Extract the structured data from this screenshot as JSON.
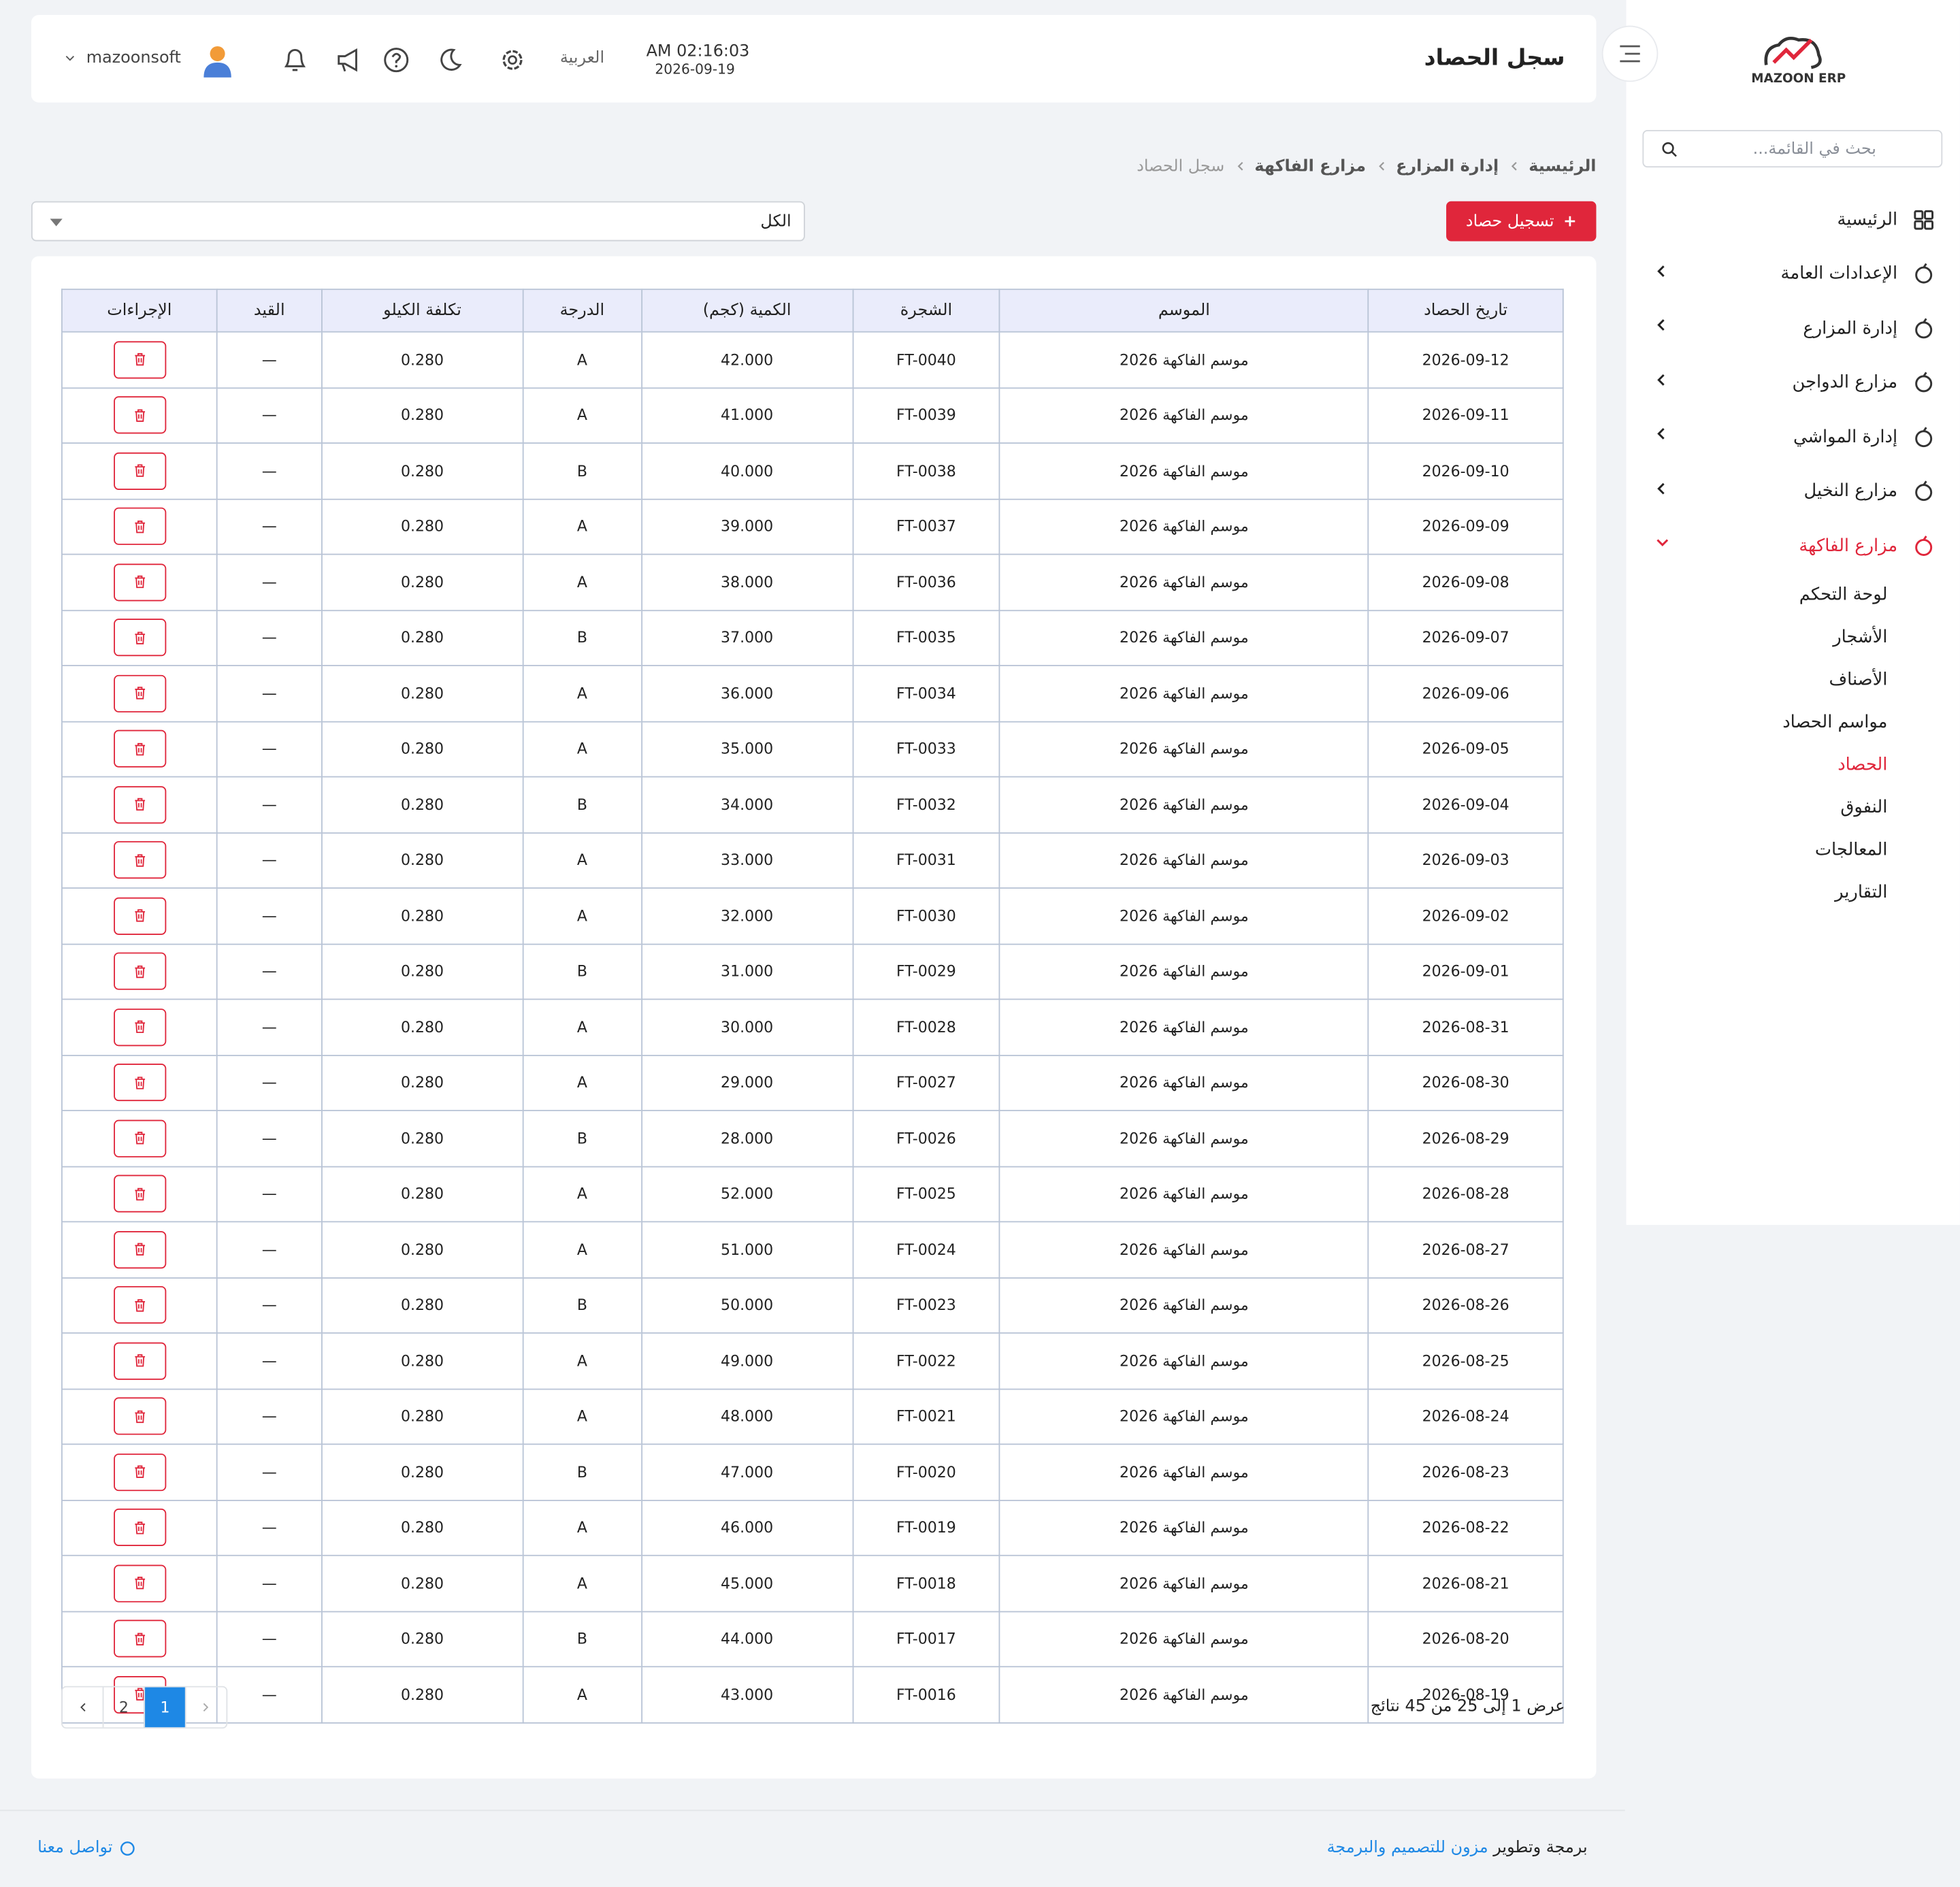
{
  "sidebar": {
    "logo": "MAZOON ERP",
    "search_placeholder": "بحث في القائمة...",
    "menu": [
      "الرئيسية",
      "الإعدادات العامة",
      "إدارة المزارع",
      "مزارع الدواجن",
      "إدارة المواشي",
      "مزارع النخيل",
      "مزارع الفاكهة"
    ],
    "submenu": [
      "لوحة التحكم",
      "الأشجار",
      "الأصناف",
      "مواسم الحصاد",
      "الحصاد",
      "النفوق",
      "المعالجات",
      "التقارير"
    ]
  },
  "header": {
    "title": "سجل الحصاد",
    "time": "AM 02:16:03",
    "date": "2026-09-19",
    "language": "العربية",
    "user": "mazoonsoft"
  },
  "breadcrumb": [
    "الرئيسية",
    "إدارة المزارع",
    "مزارع الفاكهة",
    "سجل الحصاد"
  ],
  "actions": {
    "add_button": "تسجيل حصاد",
    "filter": "الكل"
  },
  "table": {
    "columns": [
      "تاريخ الحصاد",
      "الموسم",
      "الشجرة",
      "الكمية (كجم)",
      "الدرجة",
      "تكلفة الكيلو",
      "القيد",
      "الإجراءات"
    ],
    "rows": [
      [
        "2026-09-12",
        "موسم الفاكهة 2026",
        "FT-0040",
        "42.000",
        "A",
        "0.280",
        "—"
      ],
      [
        "2026-09-11",
        "موسم الفاكهة 2026",
        "FT-0039",
        "41.000",
        "A",
        "0.280",
        "—"
      ],
      [
        "2026-09-10",
        "موسم الفاكهة 2026",
        "FT-0038",
        "40.000",
        "B",
        "0.280",
        "—"
      ],
      [
        "2026-09-09",
        "موسم الفاكهة 2026",
        "FT-0037",
        "39.000",
        "A",
        "0.280",
        "—"
      ],
      [
        "2026-09-08",
        "موسم الفاكهة 2026",
        "FT-0036",
        "38.000",
        "A",
        "0.280",
        "—"
      ],
      [
        "2026-09-07",
        "موسم الفاكهة 2026",
        "FT-0035",
        "37.000",
        "B",
        "0.280",
        "—"
      ],
      [
        "2026-09-06",
        "موسم الفاكهة 2026",
        "FT-0034",
        "36.000",
        "A",
        "0.280",
        "—"
      ],
      [
        "2026-09-05",
        "موسم الفاكهة 2026",
        "FT-0033",
        "35.000",
        "A",
        "0.280",
        "—"
      ],
      [
        "2026-09-04",
        "موسم الفاكهة 2026",
        "FT-0032",
        "34.000",
        "B",
        "0.280",
        "—"
      ],
      [
        "2026-09-03",
        "موسم الفاكهة 2026",
        "FT-0031",
        "33.000",
        "A",
        "0.280",
        "—"
      ],
      [
        "2026-09-02",
        "موسم الفاكهة 2026",
        "FT-0030",
        "32.000",
        "A",
        "0.280",
        "—"
      ],
      [
        "2026-09-01",
        "موسم الفاكهة 2026",
        "FT-0029",
        "31.000",
        "B",
        "0.280",
        "—"
      ],
      [
        "2026-08-31",
        "موسم الفاكهة 2026",
        "FT-0028",
        "30.000",
        "A",
        "0.280",
        "—"
      ],
      [
        "2026-08-30",
        "موسم الفاكهة 2026",
        "FT-0027",
        "29.000",
        "A",
        "0.280",
        "—"
      ],
      [
        "2026-08-29",
        "موسم الفاكهة 2026",
        "FT-0026",
        "28.000",
        "B",
        "0.280",
        "—"
      ],
      [
        "2026-08-28",
        "موسم الفاكهة 2026",
        "FT-0025",
        "52.000",
        "A",
        "0.280",
        "—"
      ],
      [
        "2026-08-27",
        "موسم الفاكهة 2026",
        "FT-0024",
        "51.000",
        "A",
        "0.280",
        "—"
      ],
      [
        "2026-08-26",
        "موسم الفاكهة 2026",
        "FT-0023",
        "50.000",
        "B",
        "0.280",
        "—"
      ],
      [
        "2026-08-25",
        "موسم الفاكهة 2026",
        "FT-0022",
        "49.000",
        "A",
        "0.280",
        "—"
      ],
      [
        "2026-08-24",
        "موسم الفاكهة 2026",
        "FT-0021",
        "48.000",
        "A",
        "0.280",
        "—"
      ],
      [
        "2026-08-23",
        "موسم الفاكهة 2026",
        "FT-0020",
        "47.000",
        "B",
        "0.280",
        "—"
      ],
      [
        "2026-08-22",
        "موسم الفاكهة 2026",
        "FT-0019",
        "46.000",
        "A",
        "0.280",
        "—"
      ],
      [
        "2026-08-21",
        "موسم الفاكهة 2026",
        "FT-0018",
        "45.000",
        "A",
        "0.280",
        "—"
      ],
      [
        "2026-08-20",
        "موسم الفاكهة 2026",
        "FT-0017",
        "44.000",
        "B",
        "0.280",
        "—"
      ],
      [
        "2026-08-19",
        "موسم الفاكهة 2026",
        "FT-0016",
        "43.000",
        "A",
        "0.280",
        "—"
      ]
    ]
  },
  "pagination": {
    "summary": "عرض 1 إلى 25 من 45 نتائج",
    "pages": [
      "1",
      "2"
    ]
  },
  "footer": {
    "credit_prefix": "برمجة وتطوير",
    "credit_link": "مزون للتصميم والبرمجة",
    "contact": "تواصل معنا"
  }
}
